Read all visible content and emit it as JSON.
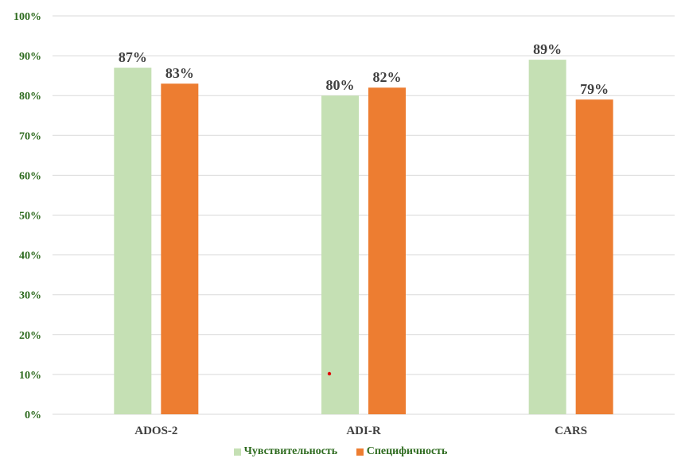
{
  "chart_data": {
    "type": "bar",
    "categories": [
      "ADOS-2",
      "ADI-R",
      "CARS"
    ],
    "series": [
      {
        "name": "Чувствительность",
        "values": [
          87,
          80,
          89
        ],
        "labels": [
          "87%",
          "80%",
          "89%"
        ],
        "color": "#c5e0b4"
      },
      {
        "name": "Специфичность",
        "values": [
          83,
          82,
          79
        ],
        "labels": [
          "83%",
          "82%",
          "79%"
        ],
        "color": "#ed7d31"
      }
    ],
    "ylim": [
      0,
      100
    ],
    "yticks": [
      "0%",
      "10%",
      "20%",
      "30%",
      "40%",
      "50%",
      "60%",
      "70%",
      "80%",
      "90%",
      "100%"
    ],
    "grid": true,
    "legend_position": "bottom",
    "gridline_color": "#d9d9d9",
    "annotation_color": "#e00000"
  }
}
